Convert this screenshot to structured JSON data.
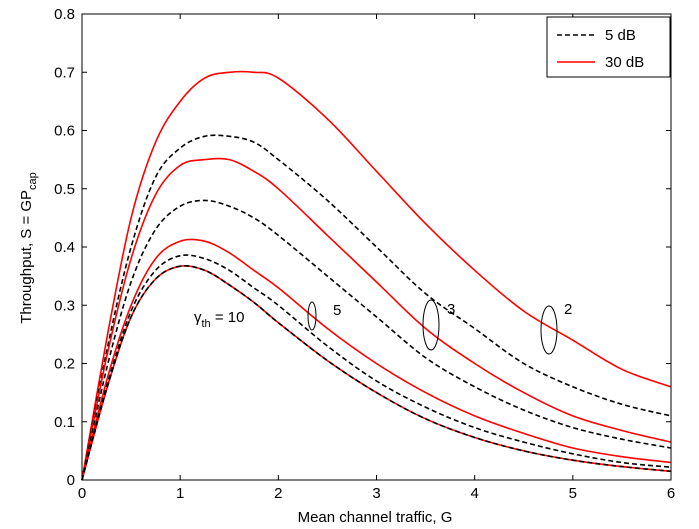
{
  "chart_data": {
    "type": "line",
    "xlabel": "Mean channel traffic, G",
    "ylabel_main": "Throughput, S = GP",
    "ylabel_sub": "cap",
    "xlim": [
      0,
      6
    ],
    "ylim": [
      0,
      0.8
    ],
    "xticks": [
      "0",
      "1",
      "2",
      "3",
      "4",
      "5",
      "6"
    ],
    "yticks": [
      "0",
      "0.1",
      "0.2",
      "0.3",
      "0.4",
      "0.5",
      "0.6",
      "0.7",
      "0.8"
    ],
    "grid": false,
    "legend_position": "top-right",
    "legend": [
      {
        "label": "5 dB",
        "color": "#000000",
        "style": "dashed"
      },
      {
        "label": "30 dB",
        "color": "#ff0000",
        "style": "solid"
      }
    ],
    "x": [
      0,
      0.25,
      0.5,
      0.75,
      1,
      1.25,
      1.5,
      1.75,
      2,
      2.5,
      3,
      3.5,
      4,
      4.5,
      5,
      5.5,
      6
    ],
    "series": [
      {
        "style": "solid",
        "color": "#ff0000",
        "gamma": "2",
        "values": [
          0,
          0.24,
          0.45,
          0.58,
          0.65,
          0.69,
          0.7,
          0.7,
          0.69,
          0.62,
          0.53,
          0.44,
          0.36,
          0.29,
          0.24,
          0.19,
          0.16
        ]
      },
      {
        "style": "dashed",
        "color": "#000000",
        "gamma": "2",
        "values": [
          0,
          0.22,
          0.4,
          0.52,
          0.57,
          0.59,
          0.59,
          0.58,
          0.55,
          0.48,
          0.4,
          0.32,
          0.26,
          0.2,
          0.16,
          0.13,
          0.11
        ]
      },
      {
        "style": "solid",
        "color": "#ff0000",
        "gamma": "3",
        "values": [
          0,
          0.21,
          0.38,
          0.49,
          0.54,
          0.55,
          0.55,
          0.53,
          0.5,
          0.42,
          0.34,
          0.26,
          0.2,
          0.15,
          0.11,
          0.085,
          0.065
        ]
      },
      {
        "style": "dashed",
        "color": "#000000",
        "gamma": "3",
        "values": [
          0,
          0.19,
          0.34,
          0.43,
          0.47,
          0.48,
          0.47,
          0.45,
          0.42,
          0.35,
          0.28,
          0.21,
          0.16,
          0.12,
          0.09,
          0.07,
          0.055
        ]
      },
      {
        "style": "solid",
        "color": "#ff0000",
        "gamma": "5",
        "values": [
          0,
          0.17,
          0.3,
          0.38,
          0.41,
          0.41,
          0.39,
          0.36,
          0.33,
          0.26,
          0.2,
          0.15,
          0.11,
          0.08,
          0.055,
          0.04,
          0.03
        ]
      },
      {
        "style": "dashed",
        "color": "#000000",
        "gamma": "5",
        "values": [
          0,
          0.16,
          0.29,
          0.36,
          0.385,
          0.38,
          0.36,
          0.33,
          0.3,
          0.23,
          0.17,
          0.125,
          0.09,
          0.065,
          0.045,
          0.03,
          0.022
        ]
      },
      {
        "style": "solid",
        "color": "#ff0000",
        "gamma": "10",
        "values": [
          0,
          0.155,
          0.28,
          0.345,
          0.367,
          0.36,
          0.335,
          0.305,
          0.27,
          0.205,
          0.15,
          0.105,
          0.073,
          0.05,
          0.034,
          0.023,
          0.015
        ]
      },
      {
        "style": "dashed",
        "color": "#000000",
        "gamma": "10",
        "values": [
          0,
          0.155,
          0.28,
          0.345,
          0.367,
          0.36,
          0.335,
          0.305,
          0.27,
          0.205,
          0.15,
          0.105,
          0.073,
          0.05,
          0.034,
          0.023,
          0.015
        ]
      }
    ],
    "annotations": [
      {
        "text_main": "γ",
        "text_sub": "th",
        "text_after": " = 10"
      },
      {
        "text": "5"
      },
      {
        "text": "3"
      },
      {
        "text": "2"
      }
    ]
  }
}
